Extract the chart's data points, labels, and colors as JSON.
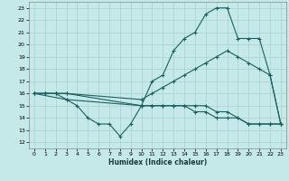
{
  "xlabel": "Humidex (Indice chaleur)",
  "bg_color": "#c5e8e8",
  "grid_color": "#aad0d0",
  "line_color": "#1a6060",
  "xlim": [
    -0.5,
    23.5
  ],
  "ylim": [
    11.5,
    23.5
  ],
  "xticks": [
    0,
    1,
    2,
    3,
    4,
    5,
    6,
    7,
    8,
    9,
    10,
    11,
    12,
    13,
    14,
    15,
    16,
    17,
    18,
    19,
    20,
    21,
    22,
    23
  ],
  "yticks": [
    12,
    13,
    14,
    15,
    16,
    17,
    18,
    19,
    20,
    21,
    22,
    23
  ],
  "lines": [
    {
      "x": [
        0,
        1,
        2,
        3,
        10,
        11,
        12,
        13,
        14,
        15,
        16,
        17,
        18,
        19,
        20,
        21,
        22,
        23
      ],
      "y": [
        16,
        16,
        16,
        16,
        15,
        17,
        17.5,
        19.5,
        20.5,
        21,
        22.5,
        23,
        23,
        20.5,
        20.5,
        20.5,
        17.5,
        13.5
      ]
    },
    {
      "x": [
        0,
        1,
        2,
        3,
        10,
        11,
        12,
        13,
        14,
        15,
        16,
        17,
        18,
        19,
        20,
        21,
        22,
        23
      ],
      "y": [
        16,
        16,
        16,
        16,
        15.5,
        16,
        16.5,
        17,
        17.5,
        18,
        18.5,
        19,
        19.5,
        19,
        18.5,
        18,
        17.5,
        13.5
      ]
    },
    {
      "x": [
        0,
        3,
        4,
        5,
        6,
        7,
        8,
        9,
        10,
        11,
        12,
        13,
        14,
        15,
        16,
        17,
        18,
        19,
        20,
        21,
        22,
        23
      ],
      "y": [
        16,
        15.5,
        15,
        14,
        13.5,
        13.5,
        12.5,
        13.5,
        15,
        15,
        15,
        15,
        15,
        14.5,
        14.5,
        14,
        14,
        14,
        13.5,
        13.5,
        13.5,
        13.5
      ]
    },
    {
      "x": [
        0,
        1,
        2,
        3,
        10,
        11,
        12,
        13,
        14,
        15,
        16,
        17,
        18,
        19,
        20,
        21,
        22,
        23
      ],
      "y": [
        16,
        16,
        16,
        15.5,
        15,
        15,
        15,
        15,
        15,
        15,
        15,
        14.5,
        14.5,
        14,
        13.5,
        13.5,
        13.5,
        13.5
      ]
    }
  ]
}
